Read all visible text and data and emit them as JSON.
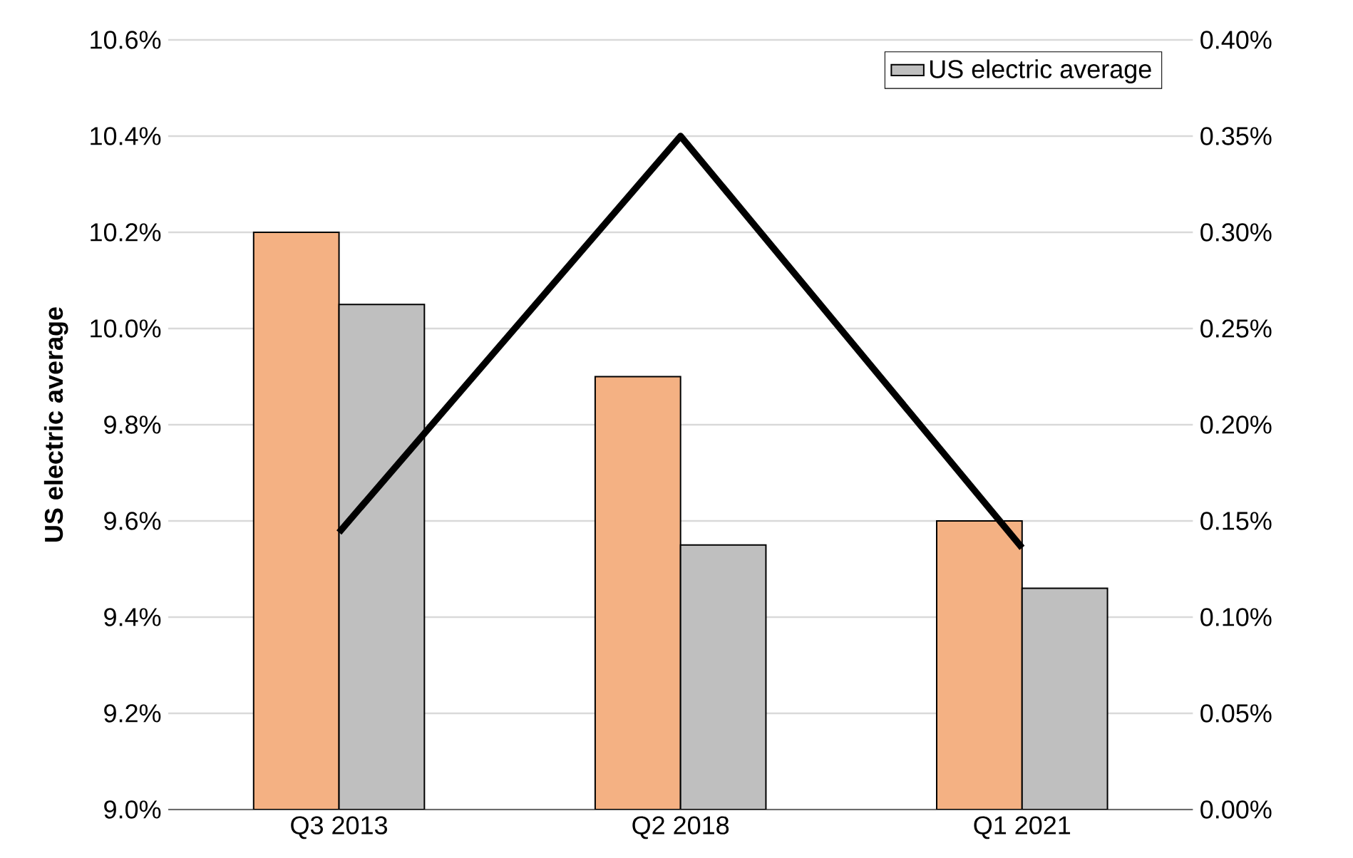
{
  "chart_data": {
    "type": "bar",
    "ylabel": "US electric average",
    "categories": [
      "Q3 2013",
      "Q2 2018",
      "Q1 2021"
    ],
    "series": [
      {
        "color": "#f4b183",
        "values": [
          10.2,
          9.9,
          9.6
        ]
      },
      {
        "name": "US electric average",
        "color": "#bfbfbf",
        "values": [
          10.05,
          9.55,
          9.46
        ]
      },
      {
        "type": "line",
        "axis": "y2",
        "color": "#000000",
        "values": [
          0.144,
          0.35,
          0.136
        ]
      }
    ],
    "ylim": [
      9.0,
      10.6
    ],
    "yticks": [
      {
        "value": 9.0,
        "label": "9.0%"
      },
      {
        "value": 9.2,
        "label": "9.2%"
      },
      {
        "value": 9.4,
        "label": "9.4%"
      },
      {
        "value": 9.6,
        "label": "9.6%"
      },
      {
        "value": 9.8,
        "label": "9.8%"
      },
      {
        "value": 10.0,
        "label": "10.0%"
      },
      {
        "value": 10.2,
        "label": "10.2%"
      },
      {
        "value": 10.4,
        "label": "10.4%"
      },
      {
        "value": 10.6,
        "label": "10.6%"
      }
    ],
    "y2lim": [
      0,
      0.4
    ],
    "y2ticks": [
      {
        "value": 0,
        "label": "0.00%"
      },
      {
        "value": 0.05,
        "label": "0.05%"
      },
      {
        "value": 0.1,
        "label": "0.10%"
      },
      {
        "value": 0.15,
        "label": "0.15%"
      },
      {
        "value": 0.2,
        "label": "0.20%"
      },
      {
        "value": 0.25,
        "label": "0.25%"
      },
      {
        "value": 0.3,
        "label": "0.30%"
      },
      {
        "value": 0.35,
        "label": "0.35%"
      },
      {
        "value": 0.4,
        "label": "0.40%"
      }
    ],
    "grid": "y",
    "legend": "top right",
    "marker": "none",
    "line_style": "solid"
  }
}
